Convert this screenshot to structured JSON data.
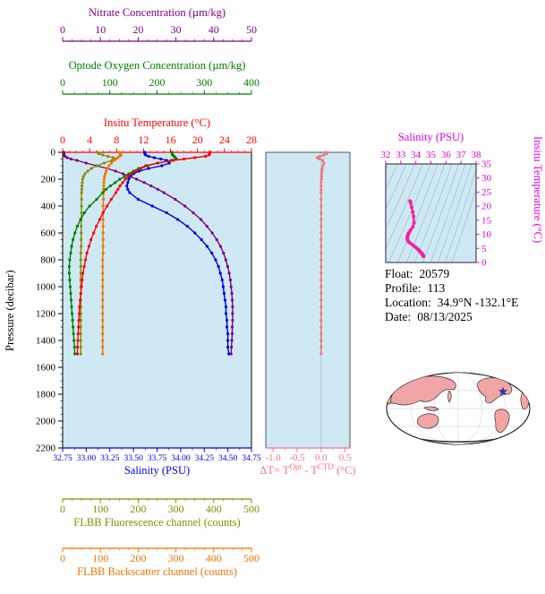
{
  "info": {
    "float_label": "Float:",
    "float_value": "20579",
    "profile_label": "Profile:",
    "profile_value": "113",
    "location_label": "Location:",
    "location_value": "34.9°N -132.1°E",
    "date_label": "Date:",
    "date_value": "08/13/2025"
  },
  "map": {
    "ocean": "#ffffff",
    "land": "#f2a5a5",
    "outline": "#333333",
    "graticule": "#c9c9c9",
    "marker_color": "#2233bb",
    "marker": "float-position"
  },
  "chart_data": [
    {
      "id": "profile",
      "type": "line",
      "orientation": "depth-profile",
      "plot_bg": "#cfe9f4",
      "y_axis": {
        "label": "Pressure (decibar)",
        "range": [
          0,
          2200
        ],
        "ticks": [
          0,
          200,
          400,
          600,
          800,
          1000,
          1200,
          1400,
          1600,
          1800,
          2000,
          2200
        ],
        "minor_step": 50,
        "color": "#000000"
      },
      "x_axes": [
        {
          "id": "nitrate",
          "label": "Nitrate Concentration (µm/kg)",
          "range": [
            0,
            50
          ],
          "ticks": [
            "0",
            "10",
            "20",
            "30",
            "40",
            "50"
          ],
          "minor_step": 2.5,
          "color": "#800080"
        },
        {
          "id": "oxygen",
          "label": "Optode Oxygen Concentration (µm/kg)",
          "range": [
            0,
            400
          ],
          "ticks": [
            "0",
            "100",
            "200",
            "300",
            "400"
          ],
          "minor_step": 25,
          "color": "#008000"
        },
        {
          "id": "temperature",
          "label": "Insitu Temperature (°C)",
          "range": [
            0,
            28
          ],
          "ticks": [
            "0",
            "4",
            "8",
            "12",
            "16",
            "20",
            "24",
            "28"
          ],
          "minor_step": 1,
          "color": "#ff0000"
        },
        {
          "id": "salinity",
          "label": "Salinity (PSU)",
          "range": [
            32.75,
            34.75
          ],
          "ticks": [
            "32.75",
            "33.00",
            "33.25",
            "33.50",
            "33.75",
            "34.00",
            "34.25",
            "34.50",
            "34.75"
          ],
          "minor_step": 0.125,
          "color": "#0000dd"
        },
        {
          "id": "fluorescence",
          "label": "FLBB Fluorescence channel (counts)",
          "range": [
            0,
            500
          ],
          "ticks": [
            "0",
            "100",
            "200",
            "300",
            "400",
            "500"
          ],
          "minor_step": 25,
          "color": "#8b8b00"
        },
        {
          "id": "backscatter",
          "label": "FLBB Backscatter channel (counts)",
          "range": [
            0,
            500
          ],
          "ticks": [
            "0",
            "100",
            "200",
            "300",
            "400",
            "500"
          ],
          "minor_step": 25,
          "color": "#ee7600"
        }
      ],
      "pressure": [
        0,
        10,
        20,
        30,
        40,
        50,
        60,
        80,
        100,
        120,
        140,
        160,
        180,
        200,
        225,
        250,
        275,
        300,
        350,
        400,
        450,
        500,
        550,
        600,
        650,
        700,
        750,
        800,
        850,
        900,
        950,
        1000,
        1050,
        1100,
        1150,
        1200,
        1250,
        1300,
        1350,
        1400,
        1450,
        1500
      ],
      "series": [
        {
          "axis": "nitrate",
          "values": [
            0.3,
            0.3,
            0.4,
            0.6,
            1.2,
            2.2,
            3.8,
            6.2,
            9.0,
            11.8,
            14.0,
            16.0,
            17.8,
            19.6,
            21.6,
            23.4,
            25.2,
            26.8,
            29.8,
            32.4,
            34.6,
            36.6,
            38.2,
            39.6,
            40.8,
            41.8,
            42.6,
            43.2,
            43.7,
            44.1,
            44.4,
            44.6,
            44.8,
            44.9,
            45.0,
            45.0,
            45.0,
            44.9,
            44.9,
            44.8,
            44.7,
            44.6
          ]
        },
        {
          "axis": "fluorescence",
          "values": [
            92,
            96,
            106,
            120,
            134,
            140,
            131,
            110,
            91,
            76,
            66,
            59,
            55,
            53,
            52,
            51,
            51,
            50,
            50,
            50,
            50,
            49,
            49,
            49,
            49,
            49,
            48,
            48,
            48,
            48,
            48,
            48,
            48,
            48,
            48,
            48,
            48,
            48,
            48,
            48,
            48,
            48
          ]
        },
        {
          "axis": "backscatter",
          "values": [
            150,
            152,
            155,
            151,
            146,
            141,
            136,
            129,
            123,
            118,
            115,
            113,
            111,
            110,
            109,
            109,
            108,
            108,
            108,
            107,
            107,
            107,
            107,
            107,
            107,
            107,
            107,
            106,
            106,
            106,
            106,
            106,
            106,
            106,
            106,
            106,
            106,
            106,
            106,
            106,
            106,
            106
          ]
        },
        {
          "axis": "oxygen",
          "values": [
            232,
            232,
            233,
            236,
            239,
            241,
            230,
            201,
            176,
            161,
            150,
            140,
            131,
            121,
            111,
            101,
            92,
            85,
            72,
            57,
            46,
            38,
            31,
            26,
            22,
            19,
            17,
            15,
            14,
            14,
            15,
            16,
            17,
            18,
            19,
            20,
            21,
            22,
            23,
            24,
            25,
            26
          ]
        },
        {
          "axis": "salinity",
          "values": [
            33.62,
            33.62,
            33.63,
            33.66,
            33.72,
            33.79,
            33.85,
            33.88,
            33.8,
            33.66,
            33.56,
            33.5,
            33.47,
            33.45,
            33.44,
            33.43,
            33.44,
            33.46,
            33.55,
            33.7,
            33.85,
            33.97,
            34.07,
            34.15,
            34.22,
            34.28,
            34.33,
            34.37,
            34.4,
            34.42,
            34.44,
            34.45,
            34.46,
            34.47,
            34.48,
            34.48,
            34.49,
            34.49,
            34.5,
            34.5,
            34.5,
            34.51
          ]
        },
        {
          "axis": "temperature",
          "values": [
            21.8,
            21.8,
            21.7,
            21.2,
            19.6,
            18.0,
            16.4,
            14.1,
            12.6,
            11.6,
            10.8,
            10.2,
            9.7,
            9.3,
            8.9,
            8.5,
            8.2,
            7.9,
            7.2,
            6.6,
            6.0,
            5.5,
            5.0,
            4.6,
            4.2,
            3.9,
            3.6,
            3.4,
            3.2,
            3.0,
            2.9,
            2.8,
            2.7,
            2.6,
            2.5,
            2.45,
            2.4,
            2.35,
            2.3,
            2.25,
            2.2,
            2.2
          ]
        }
      ]
    },
    {
      "id": "delta_t",
      "type": "line",
      "orientation": "depth-profile",
      "plot_bg": "#cfe9f4",
      "title_parts": {
        "p1": "ΔT= T",
        "sup1": "Opt",
        "p2": " - T",
        "sup2": "CTD",
        "p3": " (°C)"
      },
      "x_axis": {
        "range": [
          -1.15,
          0.6
        ],
        "ticks": [
          "-1.0",
          "-0.5",
          "0.0",
          "0.5"
        ],
        "minor_step": 0.25,
        "color": "#f8717f"
      },
      "pressure": [
        0,
        10,
        20,
        30,
        40,
        50,
        60,
        80,
        100,
        120,
        140,
        160,
        180,
        200,
        225,
        250,
        275,
        300,
        350,
        400,
        450,
        500,
        550,
        600,
        650,
        700,
        750,
        800,
        850,
        900,
        950,
        1000,
        1050,
        1100,
        1150,
        1200,
        1250,
        1300,
        1350,
        1400,
        1450,
        1500
      ],
      "values": [
        0.1,
        0.12,
        0.06,
        -0.03,
        -0.08,
        -0.04,
        0.03,
        0.06,
        0.04,
        0.02,
        0.02,
        0.01,
        0.01,
        0.01,
        0,
        0,
        0,
        0,
        0,
        0,
        0,
        0,
        0,
        0,
        0,
        0,
        0,
        0,
        0,
        0,
        0,
        0,
        0,
        0,
        0,
        0,
        0,
        0,
        0,
        0,
        0,
        0
      ]
    },
    {
      "id": "ts_diagram",
      "type": "line",
      "plot_bg": "#cfe9f4",
      "x_axis": {
        "label": "Salinity (PSU)",
        "range": [
          32,
          38
        ],
        "ticks": [
          "32",
          "33",
          "34",
          "35",
          "36",
          "37",
          "38"
        ],
        "color": "#dd00dd"
      },
      "y_axis": {
        "label": "Insitu Temperature (°C)",
        "range": [
          0,
          35
        ],
        "ticks": [
          "0",
          "5",
          "10",
          "15",
          "20",
          "25",
          "30",
          "35"
        ],
        "color": "#dd00dd"
      },
      "curve_color": "#f020a0",
      "contour_color": "#8fb6c6",
      "salinity_source": "profile.series.salinity",
      "temperature_source": "profile.series.temperature"
    }
  ]
}
